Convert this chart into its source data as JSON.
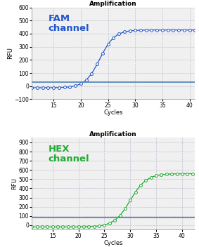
{
  "title": "Amplification",
  "fam_label": "FAM\nchannel",
  "hex_label": "HEX\nchannel",
  "fam_color": "#2255cc",
  "hex_color": "#22aa33",
  "threshold_color": "#5588bb",
  "xlabel": "Cycles",
  "ylabel": "RFU",
  "fam_ylim": [
    -100,
    600
  ],
  "fam_yticks": [
    -100,
    0,
    100,
    200,
    300,
    400,
    500,
    600
  ],
  "hex_ylim": [
    -50,
    950
  ],
  "hex_yticks": [
    0,
    100,
    200,
    300,
    400,
    500,
    600,
    700,
    800,
    900
  ],
  "fam_xlim": [
    11,
    41
  ],
  "hex_xlim": [
    11,
    42.5
  ],
  "fam_xticks": [
    15,
    20,
    25,
    30,
    35,
    40
  ],
  "hex_xticks": [
    15,
    20,
    25,
    30,
    35,
    40
  ],
  "fam_threshold": 32,
  "hex_threshold": 80,
  "background_color": "#f0f0f0",
  "fig_background": "#ffffff",
  "title_fontsize": 6.5,
  "channel_fontsize": 9.5,
  "tick_fontsize": 5.5,
  "axis_label_fontsize": 6
}
